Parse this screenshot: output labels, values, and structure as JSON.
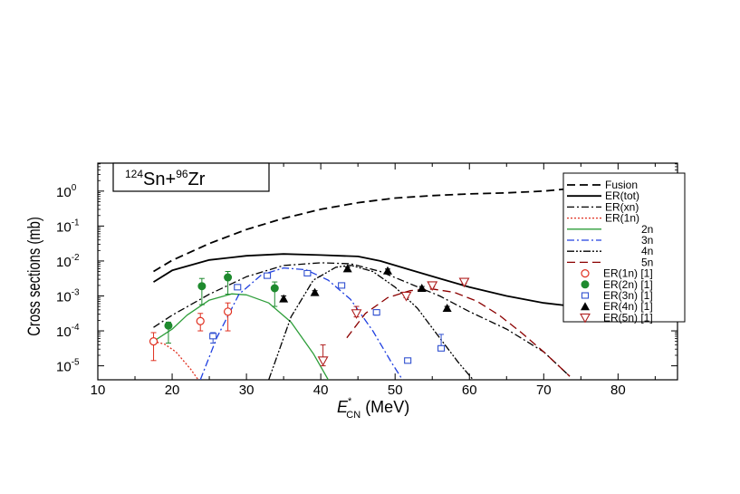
{
  "chart_data": {
    "type": "line",
    "title": "",
    "inset_label": {
      "base": "Sn+",
      "sup1": "124",
      "sup2": "96",
      "tail": "Zr"
    },
    "xlabel": {
      "main": "E",
      "sup": "*",
      "sub": "CN",
      "unit": " (MeV)"
    },
    "ylabel": "Cross sections (mb)",
    "xlim": [
      10,
      88
    ],
    "ylim_log10": [
      -5.4,
      0.8
    ],
    "log_y": true,
    "x_ticks": [
      10,
      20,
      30,
      40,
      50,
      60,
      70,
      80
    ],
    "x_tick_labels": [
      "10",
      "20",
      "30",
      "40",
      "50",
      "60",
      "70",
      "80"
    ],
    "y_ticks_exp": [
      -5,
      -4,
      -3,
      -2,
      -1,
      0
    ],
    "y_tick_base": "10",
    "y_tick_exps": [
      "-5",
      "-4",
      "-3",
      "-2",
      "-1",
      "0"
    ],
    "grid": false,
    "legend_position": "right",
    "series": [
      {
        "name": "Fusion",
        "style": "dashed",
        "color": "#000000",
        "x": [
          17.5,
          20,
          25,
          30,
          35,
          40,
          45,
          50,
          55,
          60,
          65,
          70,
          74
        ],
        "y_log10": [
          -2.3,
          -1.98,
          -1.5,
          -1.1,
          -0.78,
          -0.52,
          -0.33,
          -0.2,
          -0.13,
          -0.08,
          -0.05,
          0.0,
          0.08
        ]
      },
      {
        "name": "ER(tot)",
        "style": "solid",
        "color": "#000000",
        "x": [
          17.5,
          20,
          25,
          30,
          35,
          40,
          45,
          48,
          52,
          56,
          60,
          65,
          70,
          74
        ],
        "y_log10": [
          -2.6,
          -2.27,
          -1.97,
          -1.85,
          -1.8,
          -1.83,
          -1.87,
          -2.0,
          -2.25,
          -2.5,
          -2.75,
          -3.0,
          -3.2,
          -3.3
        ]
      },
      {
        "name": "ER(xn)",
        "style": "dashdot",
        "color": "#000000",
        "x": [
          17.5,
          20,
          25,
          30,
          35,
          40,
          44,
          48,
          52,
          56,
          60,
          65,
          70,
          73.5
        ],
        "y_log10": [
          -3.9,
          -3.55,
          -2.95,
          -2.45,
          -2.13,
          -2.05,
          -2.08,
          -2.3,
          -2.65,
          -3.0,
          -3.45,
          -3.95,
          -4.6,
          -5.3
        ]
      },
      {
        "name": "ER(1n)",
        "style": "dotted",
        "color": "#e03020",
        "x": [
          17.5,
          19,
          20.5,
          21.5,
          22.5,
          23.5
        ],
        "y_log10": [
          -4.3,
          -4.38,
          -4.6,
          -4.85,
          -5.1,
          -5.4
        ]
      },
      {
        "name": "2n",
        "style": "solid",
        "color": "#2e9e3a",
        "x": [
          17.5,
          20,
          22,
          25,
          28,
          30,
          33,
          36,
          39,
          41
        ],
        "y_log10": [
          -4.3,
          -3.95,
          -3.55,
          -3.12,
          -2.94,
          -2.97,
          -3.2,
          -3.75,
          -4.65,
          -5.4
        ]
      },
      {
        "name": "3n",
        "style": "dashdot",
        "color": "#2040e0",
        "x": [
          23.8,
          26,
          29,
          32,
          35,
          38,
          41,
          44,
          47,
          49.5,
          51
        ],
        "y_log10": [
          -5.4,
          -4.2,
          -2.95,
          -2.4,
          -2.2,
          -2.25,
          -2.55,
          -3.1,
          -4.0,
          -4.9,
          -5.4
        ]
      },
      {
        "name": "4n",
        "style": "dashdotdot",
        "color": "#000000",
        "x": [
          33,
          36,
          39,
          42,
          44,
          47,
          50,
          53,
          56,
          58.5,
          60.5
        ],
        "y_log10": [
          -5.4,
          -3.6,
          -2.55,
          -2.18,
          -2.12,
          -2.3,
          -2.75,
          -3.35,
          -4.2,
          -4.9,
          -5.4
        ]
      },
      {
        "name": "5n",
        "style": "dashed",
        "color": "#8b0000",
        "x": [
          43.5,
          46,
          49,
          52,
          55,
          58,
          61,
          64,
          67,
          70,
          73.5
        ],
        "y_log10": [
          -4.2,
          -3.5,
          -3.05,
          -2.85,
          -2.8,
          -2.9,
          -3.15,
          -3.55,
          -4.05,
          -4.6,
          -5.3
        ]
      }
    ],
    "points": [
      {
        "name": "ER(1n) [1]",
        "marker": "circle-open",
        "color": "#e03020",
        "data": [
          {
            "x": 17.5,
            "y": -4.3,
            "lo": -4.85,
            "hi": -4.05
          },
          {
            "x": 23.8,
            "y": -3.72,
            "lo": -4.0,
            "hi": -3.5
          },
          {
            "x": 27.5,
            "y": -3.45,
            "lo": -4.0,
            "hi": -3.2
          }
        ]
      },
      {
        "name": "ER(2n) [1]",
        "marker": "circle-filled",
        "color": "#1e8a2e",
        "data": [
          {
            "x": 19.5,
            "y": -3.85,
            "lo": -4.35,
            "hi": -3.75
          },
          {
            "x": 24.0,
            "y": -2.72,
            "lo": -3.25,
            "hi": -2.5
          },
          {
            "x": 27.5,
            "y": -2.47,
            "lo": -2.95,
            "hi": -2.3
          },
          {
            "x": 33.8,
            "y": -2.78,
            "lo": -3.3,
            "hi": -2.6
          }
        ]
      },
      {
        "name": "ER(3n) [1]",
        "marker": "square-open",
        "color": "#3050d0",
        "data": [
          {
            "x": 25.5,
            "y": -4.15,
            "lo": -4.35,
            "hi": -4.05
          },
          {
            "x": 28.8,
            "y": -2.75,
            "lo": -2.8,
            "hi": -2.7
          },
          {
            "x": 32.8,
            "y": -2.42,
            "lo": -2.47,
            "hi": -2.37
          },
          {
            "x": 38.2,
            "y": -2.35,
            "lo": -2.4,
            "hi": -2.3
          },
          {
            "x": 42.8,
            "y": -2.7,
            "lo": -2.75,
            "hi": -2.65
          },
          {
            "x": 47.5,
            "y": -3.47,
            "lo": -3.55,
            "hi": -3.4
          },
          {
            "x": 51.7,
            "y": -4.85,
            "lo": -4.9,
            "hi": -4.8
          },
          {
            "x": 56.2,
            "y": -4.5,
            "lo": -4.5,
            "hi": -4.1
          }
        ]
      },
      {
        "name": "ER(4n) [1]",
        "marker": "triangle-filled",
        "color": "#000000",
        "data": [
          {
            "x": 35.0,
            "y": -3.08,
            "lo": -3.15,
            "hi": -3.0
          },
          {
            "x": 39.2,
            "y": -2.9,
            "lo": -2.95,
            "hi": -2.85
          },
          {
            "x": 43.6,
            "y": -2.22,
            "lo": -2.27,
            "hi": -2.17
          },
          {
            "x": 49.0,
            "y": -2.28,
            "lo": -2.33,
            "hi": -2.23
          },
          {
            "x": 53.6,
            "y": -2.78,
            "lo": -2.83,
            "hi": -2.73
          },
          {
            "x": 57.0,
            "y": -3.35,
            "lo": -3.4,
            "hi": -3.3
          }
        ]
      },
      {
        "name": "ER(5n) [1]",
        "marker": "triangle-down-open",
        "color": "#b02020",
        "data": [
          {
            "x": 40.3,
            "y": -4.85,
            "lo": -5.0,
            "hi": -4.4
          },
          {
            "x": 44.8,
            "y": -3.5,
            "lo": -3.6,
            "hi": -3.3
          },
          {
            "x": 51.5,
            "y": -3.0,
            "lo": -3.05,
            "hi": -2.95
          },
          {
            "x": 55.0,
            "y": -2.7,
            "lo": -2.75,
            "hi": -2.65
          },
          {
            "x": 59.3,
            "y": -2.6,
            "lo": -2.65,
            "hi": -2.55
          }
        ]
      }
    ]
  }
}
